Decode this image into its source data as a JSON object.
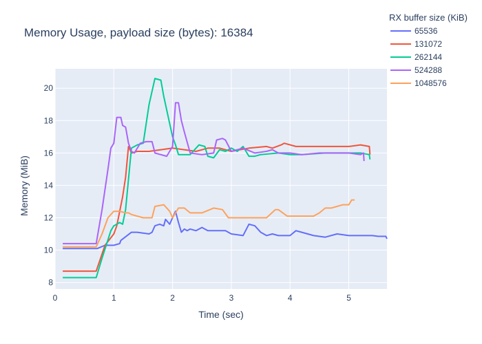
{
  "chart_data": {
    "type": "line",
    "title": "Memory Usage, payload size (bytes): 16384",
    "xlabel": "Time (sec)",
    "ylabel": "Memory (MiB)",
    "xlim": [
      0,
      5.65
    ],
    "ylim": [
      7.6,
      21.2
    ],
    "xticks": [
      0,
      1,
      2,
      3,
      4,
      5
    ],
    "yticks": [
      8,
      10,
      12,
      14,
      16,
      18,
      20
    ],
    "grid": true,
    "legend": {
      "title": "RX buffer size (KiB)",
      "position": "top-right"
    },
    "series": [
      {
        "name": "65536",
        "color": "#636efa",
        "x": [
          0.13,
          0.72,
          0.85,
          1.0,
          1.1,
          1.12,
          1.3,
          1.4,
          1.6,
          1.65,
          1.7,
          1.78,
          1.85,
          1.88,
          1.95,
          2.0,
          2.05,
          2.1,
          2.15,
          2.2,
          2.25,
          2.3,
          2.4,
          2.5,
          2.6,
          2.8,
          2.9,
          3.0,
          3.2,
          3.3,
          3.4,
          3.5,
          3.6,
          3.7,
          3.8,
          4.0,
          4.1,
          4.2,
          4.3,
          4.4,
          4.6,
          4.8,
          5.0,
          5.2,
          5.4,
          5.5,
          5.63,
          5.65
        ],
        "y": [
          10.1,
          10.1,
          10.3,
          10.3,
          10.4,
          10.6,
          11.1,
          11.1,
          11.0,
          11.1,
          11.5,
          11.6,
          11.5,
          11.9,
          11.6,
          12.0,
          12.4,
          11.7,
          11.1,
          11.3,
          11.2,
          11.3,
          11.2,
          11.4,
          11.2,
          11.2,
          11.2,
          11.0,
          10.9,
          11.6,
          11.5,
          11.1,
          10.9,
          11.0,
          10.9,
          10.9,
          11.2,
          11.1,
          11.0,
          10.9,
          10.8,
          11.0,
          10.9,
          10.9,
          10.9,
          10.85,
          10.85,
          10.7
        ]
      },
      {
        "name": "131072",
        "color": "#ef553b",
        "x": [
          0.13,
          0.7,
          0.85,
          1.0,
          1.05,
          1.15,
          1.2,
          1.25,
          1.3,
          1.4,
          1.6,
          1.8,
          2.0,
          2.2,
          2.4,
          2.6,
          2.8,
          3.0,
          3.3,
          3.6,
          3.7,
          3.85,
          3.9,
          4.1,
          4.4,
          4.8,
          5.0,
          5.2,
          5.35,
          5.36
        ],
        "y": [
          8.7,
          8.7,
          10.3,
          11.0,
          11.5,
          13.3,
          14.5,
          16.4,
          16.0,
          16.1,
          16.1,
          16.2,
          16.3,
          16.2,
          16.1,
          16.3,
          16.3,
          16.1,
          16.3,
          16.4,
          16.3,
          16.5,
          16.6,
          16.4,
          16.4,
          16.4,
          16.4,
          16.5,
          16.4,
          15.9
        ]
      },
      {
        "name": "262144",
        "color": "#00cc96",
        "x": [
          0.13,
          0.7,
          0.8,
          0.95,
          1.0,
          1.1,
          1.15,
          1.2,
          1.3,
          1.4,
          1.5,
          1.6,
          1.7,
          1.8,
          1.85,
          2.0,
          2.05,
          2.1,
          2.3,
          2.45,
          2.55,
          2.6,
          2.7,
          2.8,
          2.9,
          3.0,
          3.1,
          3.2,
          3.3,
          3.4,
          3.5,
          3.8,
          4.0,
          4.2,
          4.6,
          5.0,
          5.2,
          5.35,
          5.36
        ],
        "y": [
          8.3,
          8.3,
          9.5,
          11.2,
          11.5,
          11.7,
          11.6,
          12.5,
          16.3,
          16.5,
          16.6,
          19.0,
          20.6,
          20.5,
          19.5,
          17.0,
          16.5,
          15.9,
          15.9,
          16.5,
          16.4,
          15.8,
          15.7,
          16.2,
          16.1,
          16.3,
          16.1,
          16.4,
          15.8,
          15.8,
          15.9,
          16.0,
          15.9,
          15.9,
          16.0,
          16.0,
          16.0,
          15.9,
          15.6
        ]
      },
      {
        "name": "524288",
        "color": "#ab63fa",
        "x": [
          0.13,
          0.7,
          0.8,
          0.9,
          0.95,
          1.0,
          1.05,
          1.12,
          1.15,
          1.2,
          1.25,
          1.3,
          1.35,
          1.45,
          1.55,
          1.65,
          1.7,
          1.9,
          2.0,
          2.05,
          2.1,
          2.15,
          2.2,
          2.3,
          2.5,
          2.7,
          2.75,
          2.85,
          2.9,
          3.0,
          3.2,
          3.4,
          3.6,
          3.7,
          3.8,
          4.0,
          4.2,
          4.5,
          4.8,
          5.0,
          5.2,
          5.25,
          5.26
        ],
        "y": [
          10.4,
          10.4,
          12.5,
          15.0,
          16.3,
          16.6,
          18.2,
          18.2,
          17.7,
          17.6,
          16.6,
          16.1,
          16.0,
          16.6,
          16.7,
          16.7,
          16.0,
          15.8,
          16.4,
          19.1,
          19.1,
          18.0,
          17.3,
          16.0,
          15.9,
          16.0,
          16.8,
          16.9,
          16.8,
          16.1,
          16.3,
          16.0,
          16.1,
          16.2,
          16.0,
          16.0,
          15.9,
          16.0,
          16.0,
          16.0,
          15.9,
          16.0,
          15.5
        ]
      },
      {
        "name": "1048576",
        "color": "#ffa15a",
        "x": [
          0.13,
          0.7,
          0.8,
          0.9,
          1.0,
          1.1,
          1.2,
          1.25,
          1.3,
          1.5,
          1.65,
          1.7,
          1.85,
          1.95,
          2.0,
          2.1,
          2.2,
          2.3,
          2.5,
          2.7,
          2.85,
          2.95,
          3.0,
          3.3,
          3.6,
          3.75,
          3.8,
          3.95,
          4.1,
          4.15,
          4.4,
          4.5,
          4.6,
          4.7,
          4.8,
          4.9,
          5.0,
          5.05,
          5.1
        ],
        "y": [
          10.2,
          10.2,
          11.0,
          12.0,
          12.4,
          12.4,
          12.3,
          12.3,
          12.2,
          12.0,
          12.0,
          12.7,
          12.8,
          12.4,
          12.0,
          12.6,
          12.6,
          12.3,
          12.3,
          12.6,
          12.5,
          12.0,
          12.0,
          12.0,
          12.0,
          12.5,
          12.5,
          12.1,
          12.1,
          12.1,
          12.1,
          12.3,
          12.6,
          12.6,
          12.7,
          12.8,
          12.8,
          13.1,
          13.1
        ]
      }
    ]
  }
}
